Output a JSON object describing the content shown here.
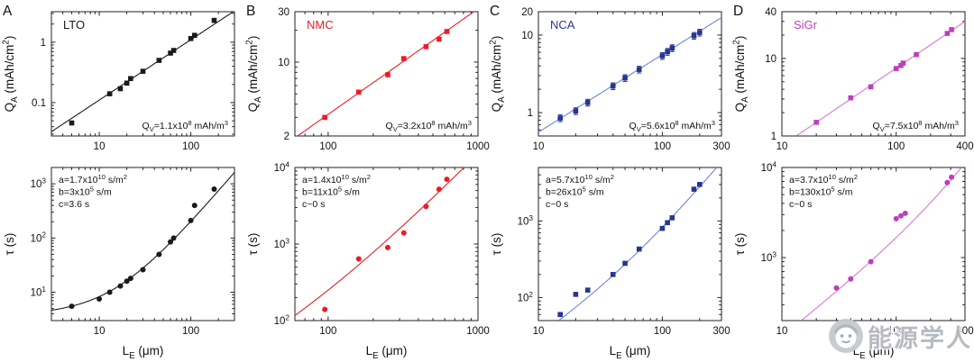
{
  "figure": {
    "background": "#ffffff",
    "watermark_text": "能源学人"
  },
  "chart_data": [
    {
      "panel": "A",
      "row": "top",
      "type": "scatter",
      "marker": "square",
      "material_label": "LTO",
      "color": "#1a1a1a",
      "line_color": "#1a1a1a",
      "ylabel": "Q_{A} (mAh/cm^{2})",
      "xlabel": "",
      "xlim": [
        3,
        300
      ],
      "ylim": [
        0.028,
        3.2
      ],
      "xticks": [
        10,
        100
      ],
      "xtick_labels": [
        "10",
        "100"
      ],
      "yticks": [
        0.1,
        1
      ],
      "ytick_labels": [
        "0.1",
        "1"
      ],
      "annotation": [
        "Q_{V}=1.1x10^{8} mAh/m^{3}"
      ],
      "fit": {
        "kind": "prop",
        "k": 0.011
      },
      "x": [
        5,
        13,
        17,
        20,
        22,
        30,
        45,
        60,
        65,
        100,
        110,
        180
      ],
      "y": [
        0.046,
        0.14,
        0.17,
        0.21,
        0.25,
        0.33,
        0.5,
        0.66,
        0.73,
        1.15,
        1.3,
        2.3
      ]
    },
    {
      "panel": "A",
      "row": "bottom",
      "type": "scatter",
      "marker": "circle",
      "material_label": "",
      "color": "#1a1a1a",
      "line_color": "#1a1a1a",
      "ylabel": "τ (s)",
      "xlabel": "L_{E} (μm)",
      "xlim": [
        3,
        300
      ],
      "ylim": [
        3,
        2000
      ],
      "xticks": [
        10,
        100
      ],
      "xtick_labels": [
        "10",
        "100"
      ],
      "yticks": [
        10,
        100,
        1000
      ],
      "ytick_labels": [
        "10^{1}",
        "10^{2}",
        "10^{3}"
      ],
      "annotation": [
        "a=1.7x10^{10} s/m^{2}",
        "b=3x10^{5} s/m",
        "c=3.6 s"
      ],
      "fit": {
        "kind": "quad",
        "a": 0.017,
        "b": 0.3,
        "c": 3.6
      },
      "x": [
        5,
        10,
        13,
        17,
        20,
        22,
        30,
        45,
        60,
        65,
        100,
        110,
        180
      ],
      "y": [
        5.5,
        7.5,
        10,
        13,
        16,
        18,
        26,
        50,
        85,
        100,
        210,
        400,
        800
      ]
    },
    {
      "panel": "B",
      "row": "top",
      "type": "scatter",
      "marker": "square",
      "material_label": "NMC",
      "color": "#ed1c24",
      "line_color": "#ed1c24",
      "ylabel": "Q_{A} (mAh/cm^{2})",
      "xlabel": "",
      "xlim": [
        60,
        1000
      ],
      "ylim": [
        2,
        30
      ],
      "xticks": [
        100,
        1000
      ],
      "xtick_labels": [
        "100",
        "1000"
      ],
      "yticks": [
        2,
        10,
        30
      ],
      "ytick_labels": [
        "2",
        "10",
        "30"
      ],
      "annotation": [
        "Q_{V}=3.2x10^{8} mAh/m^{3}"
      ],
      "fit": {
        "kind": "prop",
        "k": 0.032
      },
      "x": [
        95,
        160,
        250,
        320,
        450,
        550,
        620
      ],
      "y": [
        3.0,
        5.2,
        7.6,
        10.8,
        14.0,
        16.5,
        19.5
      ]
    },
    {
      "panel": "B",
      "row": "bottom",
      "type": "scatter",
      "marker": "circle",
      "material_label": "",
      "color": "#ed1c24",
      "line_color": "#ed1c24",
      "ylabel": "τ (s)",
      "xlabel": "L_{E} (μm)",
      "xlim": [
        60,
        1000
      ],
      "ylim": [
        100,
        10000
      ],
      "xticks": [
        100,
        1000
      ],
      "xtick_labels": [
        "100",
        "1000"
      ],
      "yticks": [
        100,
        1000,
        10000
      ],
      "ytick_labels": [
        "10^{2}",
        "10^{3}",
        "10^{4}"
      ],
      "annotation": [
        "a=1.4x10^{10} s/m^{2}",
        "b=11x10^{5} s/m",
        "c~0 s"
      ],
      "fit": {
        "kind": "quad",
        "a": 0.014,
        "b": 1.1,
        "c": 0
      },
      "x": [
        95,
        160,
        250,
        320,
        450,
        550,
        620
      ],
      "y": [
        140,
        640,
        900,
        1400,
        3100,
        5200,
        7000
      ]
    },
    {
      "panel": "C",
      "row": "top",
      "type": "scatter",
      "marker": "square",
      "material_label": "NCA",
      "color": "#28368f",
      "line_color": "#6b86d8",
      "ylabel": "Q_{A} (mAh/cm^{2})",
      "xlabel": "",
      "xlim": [
        10,
        300
      ],
      "ylim": [
        0.5,
        20
      ],
      "xticks": [
        10,
        100,
        300
      ],
      "xtick_labels": [
        "10",
        "100",
        "300"
      ],
      "yticks": [
        1,
        10,
        20
      ],
      "ytick_labels": [
        "1",
        "10",
        "20"
      ],
      "annotation": [
        "Q_{V}=5.6x10^{8} mAh/m^{3}"
      ],
      "fit": {
        "kind": "prop",
        "k": 0.056
      },
      "yerr_frac": 0.1,
      "x": [
        15,
        20,
        25,
        40,
        50,
        65,
        100,
        110,
        120,
        180,
        200
      ],
      "y": [
        0.85,
        1.05,
        1.35,
        2.2,
        2.8,
        3.6,
        5.4,
        6.1,
        6.8,
        9.8,
        10.8
      ]
    },
    {
      "panel": "C",
      "row": "bottom",
      "type": "scatter",
      "marker": "square",
      "material_label": "",
      "color": "#28368f",
      "line_color": "#6b86d8",
      "ylabel": "τ (s)",
      "xlabel": "L_{E} (μm)",
      "xlim": [
        10,
        300
      ],
      "ylim": [
        50,
        5000
      ],
      "xticks": [
        10,
        100,
        300
      ],
      "xtick_labels": [
        "10",
        "100",
        "300"
      ],
      "yticks": [
        100,
        1000
      ],
      "ytick_labels": [
        "10^{2}",
        "10^{3}"
      ],
      "annotation": [
        "a=5.7x10^{10} s/m^{2}",
        "b=26x10^{5} s/m",
        "c~0 s"
      ],
      "fit": {
        "kind": "quad",
        "a": 0.057,
        "b": 2.6,
        "c": 0
      },
      "x": [
        15,
        20,
        25,
        40,
        50,
        65,
        100,
        110,
        120,
        180,
        200
      ],
      "y": [
        60,
        110,
        125,
        200,
        280,
        430,
        800,
        950,
        1100,
        2600,
        3000
      ]
    },
    {
      "panel": "D",
      "row": "top",
      "type": "scatter",
      "marker": "square",
      "material_label": "SiGr",
      "color": "#bd3ebd",
      "line_color": "#d678d6",
      "ylabel": "Q_{A} (mAh/cm^{2})",
      "xlabel": "",
      "xlim": [
        10,
        400
      ],
      "ylim": [
        1,
        40
      ],
      "xticks": [
        10,
        100,
        400
      ],
      "xtick_labels": [
        "10",
        "100",
        "400"
      ],
      "yticks": [
        1,
        10,
        40
      ],
      "ytick_labels": [
        "1",
        "10",
        "40"
      ],
      "annotation": [
        "Q_{V}=7.5x10^{8} mAh/m^{3}"
      ],
      "fit": {
        "kind": "prop",
        "k": 0.075
      },
      "x": [
        20,
        40,
        60,
        100,
        110,
        115,
        150,
        280,
        305
      ],
      "y": [
        1.5,
        3.1,
        4.3,
        7.4,
        8.1,
        8.7,
        11.2,
        21,
        23.5
      ]
    },
    {
      "panel": "D",
      "row": "bottom",
      "type": "scatter",
      "marker": "circle",
      "material_label": "",
      "color": "#bd3ebd",
      "line_color": "#d678d6",
      "ylabel": "τ (s)",
      "xlabel": "L_{E} (μm)",
      "xlim": [
        10,
        400
      ],
      "ylim": [
        200,
        10000
      ],
      "xticks": [
        10,
        100,
        400
      ],
      "xtick_labels": [
        "10",
        "100",
        "400"
      ],
      "yticks": [
        1000,
        10000
      ],
      "ytick_labels": [
        "10^{3}",
        "10^{4}"
      ],
      "annotation": [
        "a=3.7x10^{10} s/m^{2}",
        "b=130x10^{5} s/m",
        "c~0 s"
      ],
      "fit": {
        "kind": "quad",
        "a": 0.037,
        "b": 13,
        "c": 0
      },
      "x": [
        30,
        40,
        60,
        100,
        110,
        120,
        280,
        305
      ],
      "y": [
        460,
        580,
        900,
        2700,
        2900,
        3100,
        6800,
        7800
      ]
    }
  ]
}
